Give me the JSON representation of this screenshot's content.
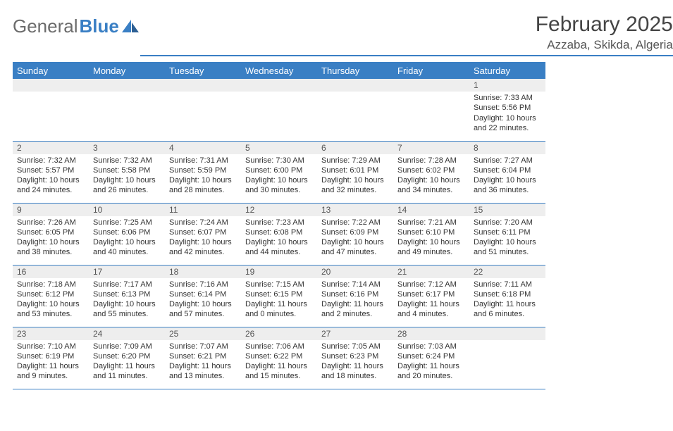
{
  "brand": {
    "part1": "General",
    "part2": "Blue"
  },
  "title": "February 2025",
  "location": "Azzaba, Skikda, Algeria",
  "colors": {
    "accent": "#3a7fc4",
    "header_text": "#ffffff",
    "daynum_bg": "#eeeeee",
    "body_text": "#333333",
    "title_text": "#444444"
  },
  "weekdays": [
    "Sunday",
    "Monday",
    "Tuesday",
    "Wednesday",
    "Thursday",
    "Friday",
    "Saturday"
  ],
  "weeks": [
    [
      null,
      null,
      null,
      null,
      null,
      null,
      {
        "n": "1",
        "sr": "7:33 AM",
        "ss": "5:56 PM",
        "dl": "10 hours and 22 minutes."
      }
    ],
    [
      {
        "n": "2",
        "sr": "7:32 AM",
        "ss": "5:57 PM",
        "dl": "10 hours and 24 minutes."
      },
      {
        "n": "3",
        "sr": "7:32 AM",
        "ss": "5:58 PM",
        "dl": "10 hours and 26 minutes."
      },
      {
        "n": "4",
        "sr": "7:31 AM",
        "ss": "5:59 PM",
        "dl": "10 hours and 28 minutes."
      },
      {
        "n": "5",
        "sr": "7:30 AM",
        "ss": "6:00 PM",
        "dl": "10 hours and 30 minutes."
      },
      {
        "n": "6",
        "sr": "7:29 AM",
        "ss": "6:01 PM",
        "dl": "10 hours and 32 minutes."
      },
      {
        "n": "7",
        "sr": "7:28 AM",
        "ss": "6:02 PM",
        "dl": "10 hours and 34 minutes."
      },
      {
        "n": "8",
        "sr": "7:27 AM",
        "ss": "6:04 PM",
        "dl": "10 hours and 36 minutes."
      }
    ],
    [
      {
        "n": "9",
        "sr": "7:26 AM",
        "ss": "6:05 PM",
        "dl": "10 hours and 38 minutes."
      },
      {
        "n": "10",
        "sr": "7:25 AM",
        "ss": "6:06 PM",
        "dl": "10 hours and 40 minutes."
      },
      {
        "n": "11",
        "sr": "7:24 AM",
        "ss": "6:07 PM",
        "dl": "10 hours and 42 minutes."
      },
      {
        "n": "12",
        "sr": "7:23 AM",
        "ss": "6:08 PM",
        "dl": "10 hours and 44 minutes."
      },
      {
        "n": "13",
        "sr": "7:22 AM",
        "ss": "6:09 PM",
        "dl": "10 hours and 47 minutes."
      },
      {
        "n": "14",
        "sr": "7:21 AM",
        "ss": "6:10 PM",
        "dl": "10 hours and 49 minutes."
      },
      {
        "n": "15",
        "sr": "7:20 AM",
        "ss": "6:11 PM",
        "dl": "10 hours and 51 minutes."
      }
    ],
    [
      {
        "n": "16",
        "sr": "7:18 AM",
        "ss": "6:12 PM",
        "dl": "10 hours and 53 minutes."
      },
      {
        "n": "17",
        "sr": "7:17 AM",
        "ss": "6:13 PM",
        "dl": "10 hours and 55 minutes."
      },
      {
        "n": "18",
        "sr": "7:16 AM",
        "ss": "6:14 PM",
        "dl": "10 hours and 57 minutes."
      },
      {
        "n": "19",
        "sr": "7:15 AM",
        "ss": "6:15 PM",
        "dl": "11 hours and 0 minutes."
      },
      {
        "n": "20",
        "sr": "7:14 AM",
        "ss": "6:16 PM",
        "dl": "11 hours and 2 minutes."
      },
      {
        "n": "21",
        "sr": "7:12 AM",
        "ss": "6:17 PM",
        "dl": "11 hours and 4 minutes."
      },
      {
        "n": "22",
        "sr": "7:11 AM",
        "ss": "6:18 PM",
        "dl": "11 hours and 6 minutes."
      }
    ],
    [
      {
        "n": "23",
        "sr": "7:10 AM",
        "ss": "6:19 PM",
        "dl": "11 hours and 9 minutes."
      },
      {
        "n": "24",
        "sr": "7:09 AM",
        "ss": "6:20 PM",
        "dl": "11 hours and 11 minutes."
      },
      {
        "n": "25",
        "sr": "7:07 AM",
        "ss": "6:21 PM",
        "dl": "11 hours and 13 minutes."
      },
      {
        "n": "26",
        "sr": "7:06 AM",
        "ss": "6:22 PM",
        "dl": "11 hours and 15 minutes."
      },
      {
        "n": "27",
        "sr": "7:05 AM",
        "ss": "6:23 PM",
        "dl": "11 hours and 18 minutes."
      },
      {
        "n": "28",
        "sr": "7:03 AM",
        "ss": "6:24 PM",
        "dl": "11 hours and 20 minutes."
      },
      null
    ]
  ],
  "labels": {
    "sunrise": "Sunrise:",
    "sunset": "Sunset:",
    "daylight": "Daylight:"
  }
}
